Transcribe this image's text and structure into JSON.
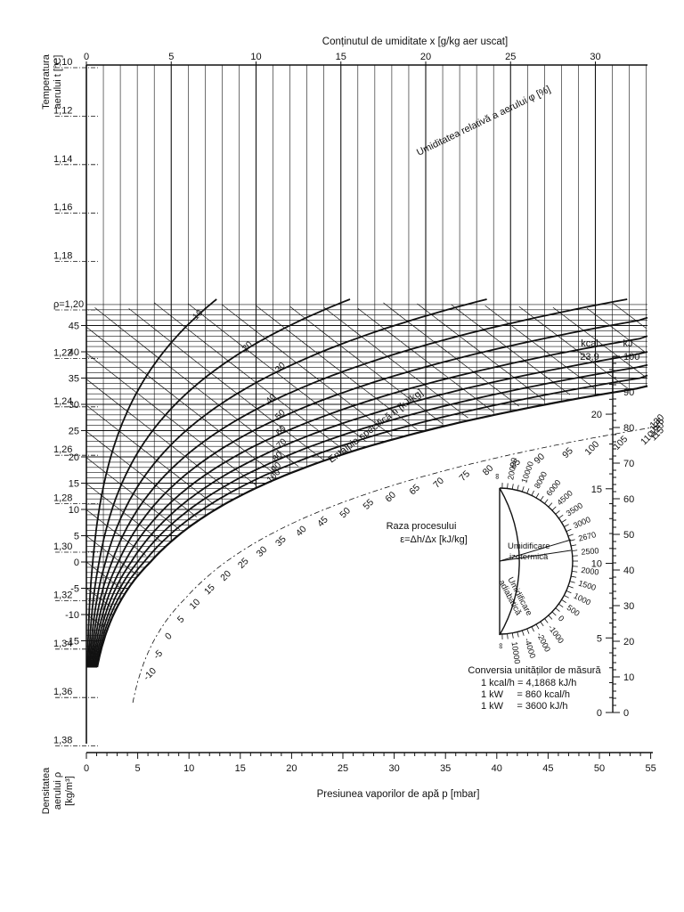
{
  "colors": {
    "ink": "#111111",
    "paper": "#ffffff"
  },
  "chart_data": {
    "type": "line",
    "title": "",
    "top_axis": {
      "label": "Conținutul de umiditate  x [g/kg aer uscat]",
      "ticks": [
        "0",
        "5",
        "10",
        "15",
        "20",
        "25",
        "30"
      ],
      "range": [
        0,
        33
      ]
    },
    "bottom_axis": {
      "label": "Presiunea vaporilor de apă p [mbar]",
      "ticks": [
        "0",
        "5",
        "10",
        "15",
        "20",
        "25",
        "30",
        "35",
        "40",
        "45",
        "50",
        "55"
      ],
      "range": [
        0,
        55
      ]
    },
    "left_axis": {
      "label_line1": "Temperatura",
      "label_line2": "aerului t [°C]",
      "ticks": [
        "-15",
        "-10",
        "-5",
        "0",
        "5",
        "10",
        "15",
        "20",
        "25",
        "30",
        "35",
        "40",
        "45"
      ],
      "range": [
        -20,
        50
      ]
    },
    "density_axis": {
      "label_line1": "Densitatea",
      "label_line2": "aerului ρ",
      "label_line3": "[kg/m³]",
      "ticks": [
        "1,10",
        "1,12",
        "1,14",
        "1,16",
        "1,18",
        "ρ=1,20",
        "1,22",
        "1,24",
        "1,26",
        "1,28",
        "1,30",
        "1,32",
        "1,34",
        "1,36",
        "1,38"
      ]
    },
    "relative_humidity": {
      "label": "Umiditatea relativă a aerului φ [%]",
      "values": [
        10,
        20,
        30,
        40,
        50,
        60,
        70,
        80,
        90,
        100
      ],
      "labels": [
        "10",
        "20",
        "30",
        "40",
        "50",
        "60",
        "70",
        "80",
        "90",
        "100"
      ]
    },
    "enthalpy": {
      "label": "Entalpia specifică h [kJ/kg]",
      "labels": [
        "-10",
        "-5",
        "0",
        "5",
        "10",
        "15",
        "20",
        "25",
        "30",
        "35",
        "40",
        "45",
        "50",
        "55",
        "60",
        "65",
        "70",
        "75",
        "80",
        "85",
        "90",
        "95",
        "100",
        "105",
        "110",
        "115",
        "120",
        "125",
        "130"
      ]
    },
    "energy_scale": {
      "kcal_label": "kcal",
      "kj_label": "kJ",
      "kcal_top": "23,9",
      "kcal_ticks": [
        "20",
        "15",
        "10",
        "5",
        "0"
      ],
      "kj_ticks": [
        "100",
        "90",
        "80",
        "70",
        "60",
        "50",
        "40",
        "30",
        "20",
        "10",
        "0"
      ]
    },
    "protractor": {
      "title_line1": "Raza procesului",
      "title_line2": "ε=Δh/Δx [kJ/kg]",
      "upper_labels": [
        "∞",
        "20000",
        "10000",
        "8000",
        "6000",
        "4500",
        "3500",
        "3000",
        "2670",
        "2500"
      ],
      "lower_labels": [
        "2000",
        "1500",
        "1000",
        "500",
        "0",
        "-1000",
        "-2000",
        "-4000",
        "10000",
        "∞"
      ],
      "iso_label_line1": "Umidificare",
      "iso_label_line2": "izotermică",
      "adi_label_line1": "Umidificare",
      "adi_label_line2": "adiabatică"
    },
    "conversion": {
      "title": "Conversia unităților de măsură",
      "lines": [
        "1 kcal/h = 4,1868 kJ/h",
        "1 kW     = 860 kcal/h",
        "1 kW     = 3600 kJ/h"
      ]
    }
  }
}
